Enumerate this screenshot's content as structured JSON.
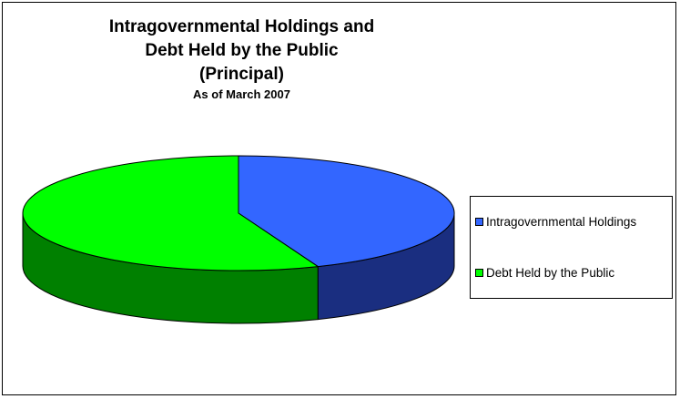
{
  "chart_data": {
    "type": "pie",
    "title_lines": [
      "Intragovernmental Holdings and",
      "Debt Held by the Public",
      "(Principal)"
    ],
    "subtitle": "As of March 2007",
    "categories": [
      "Intragovernmental Holdings",
      "Debt Held by the Public"
    ],
    "values": [
      44,
      56
    ],
    "colors": [
      "#3366FF",
      "#00FF00"
    ],
    "side_colors": [
      "#1A2E80",
      "#008000"
    ],
    "three_d": true,
    "legend_position": "right"
  }
}
